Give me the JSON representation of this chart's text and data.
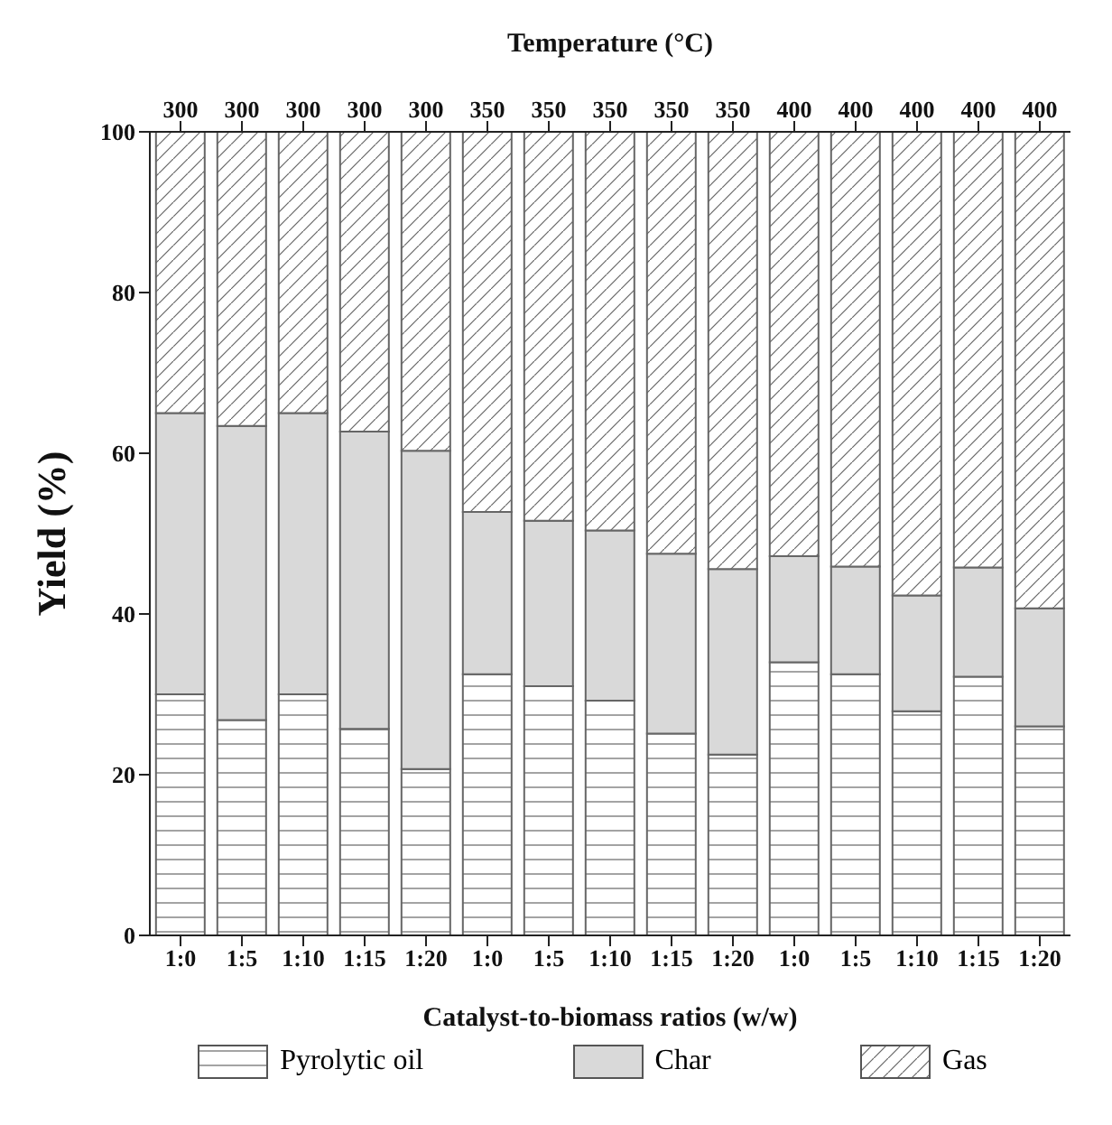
{
  "chart_data": {
    "type": "bar",
    "stacked": true,
    "xlabel": "Catalyst-to-biomass ratios (w/w)",
    "ylabel": "Yield (%)",
    "x2label": "Temperature (°C)",
    "categories": [
      "1:0",
      "1:5",
      "1:10",
      "1:15",
      "1:20",
      "1:0",
      "1:5",
      "1:10",
      "1:15",
      "1:20",
      "1:0",
      "1:5",
      "1:10",
      "1:15",
      "1:20"
    ],
    "annotations": [
      "300",
      "300",
      "300",
      "300",
      "300",
      "350",
      "350",
      "350",
      "350",
      "350",
      "400",
      "400",
      "400",
      "400",
      "400"
    ],
    "series": [
      {
        "name": "Pyrolytic oil",
        "color": "#666666",
        "values": [
          30.0,
          26.8,
          30.0,
          25.7,
          20.7,
          32.5,
          31.0,
          29.2,
          25.1,
          22.5,
          34.0,
          32.5,
          27.9,
          32.2,
          26.0
        ]
      },
      {
        "name": "Char",
        "color": "#d9d9d9",
        "values": [
          35.0,
          36.6,
          35.0,
          37.0,
          39.6,
          20.2,
          20.6,
          21.2,
          22.4,
          23.1,
          13.2,
          13.4,
          14.4,
          13.6,
          14.7
        ]
      },
      {
        "name": "Gas",
        "color": "#666666",
        "values": [
          35.0,
          36.6,
          35.0,
          37.3,
          39.7,
          47.3,
          48.4,
          49.6,
          52.5,
          54.4,
          52.8,
          54.1,
          57.7,
          54.2,
          59.3
        ]
      }
    ],
    "ylim": [
      0,
      100
    ],
    "yticks": [
      0,
      20,
      40,
      60,
      80,
      100
    ],
    "legend": "bottom"
  }
}
